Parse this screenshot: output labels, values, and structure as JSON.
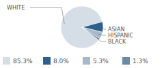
{
  "chart_data": {
    "type": "pie",
    "categories": [
      "WHITE",
      "ASIAN",
      "HISPANIC",
      "BLACK"
    ],
    "values": [
      85.3,
      8.0,
      5.3,
      1.3
    ],
    "value_labels": [
      "85.3%",
      "8.0%",
      "5.3%",
      "1.3%"
    ],
    "colors": [
      "#d5dee7",
      "#2f5f8a",
      "#a7b9c9",
      "#6b8aa5"
    ],
    "data_labels": true
  }
}
